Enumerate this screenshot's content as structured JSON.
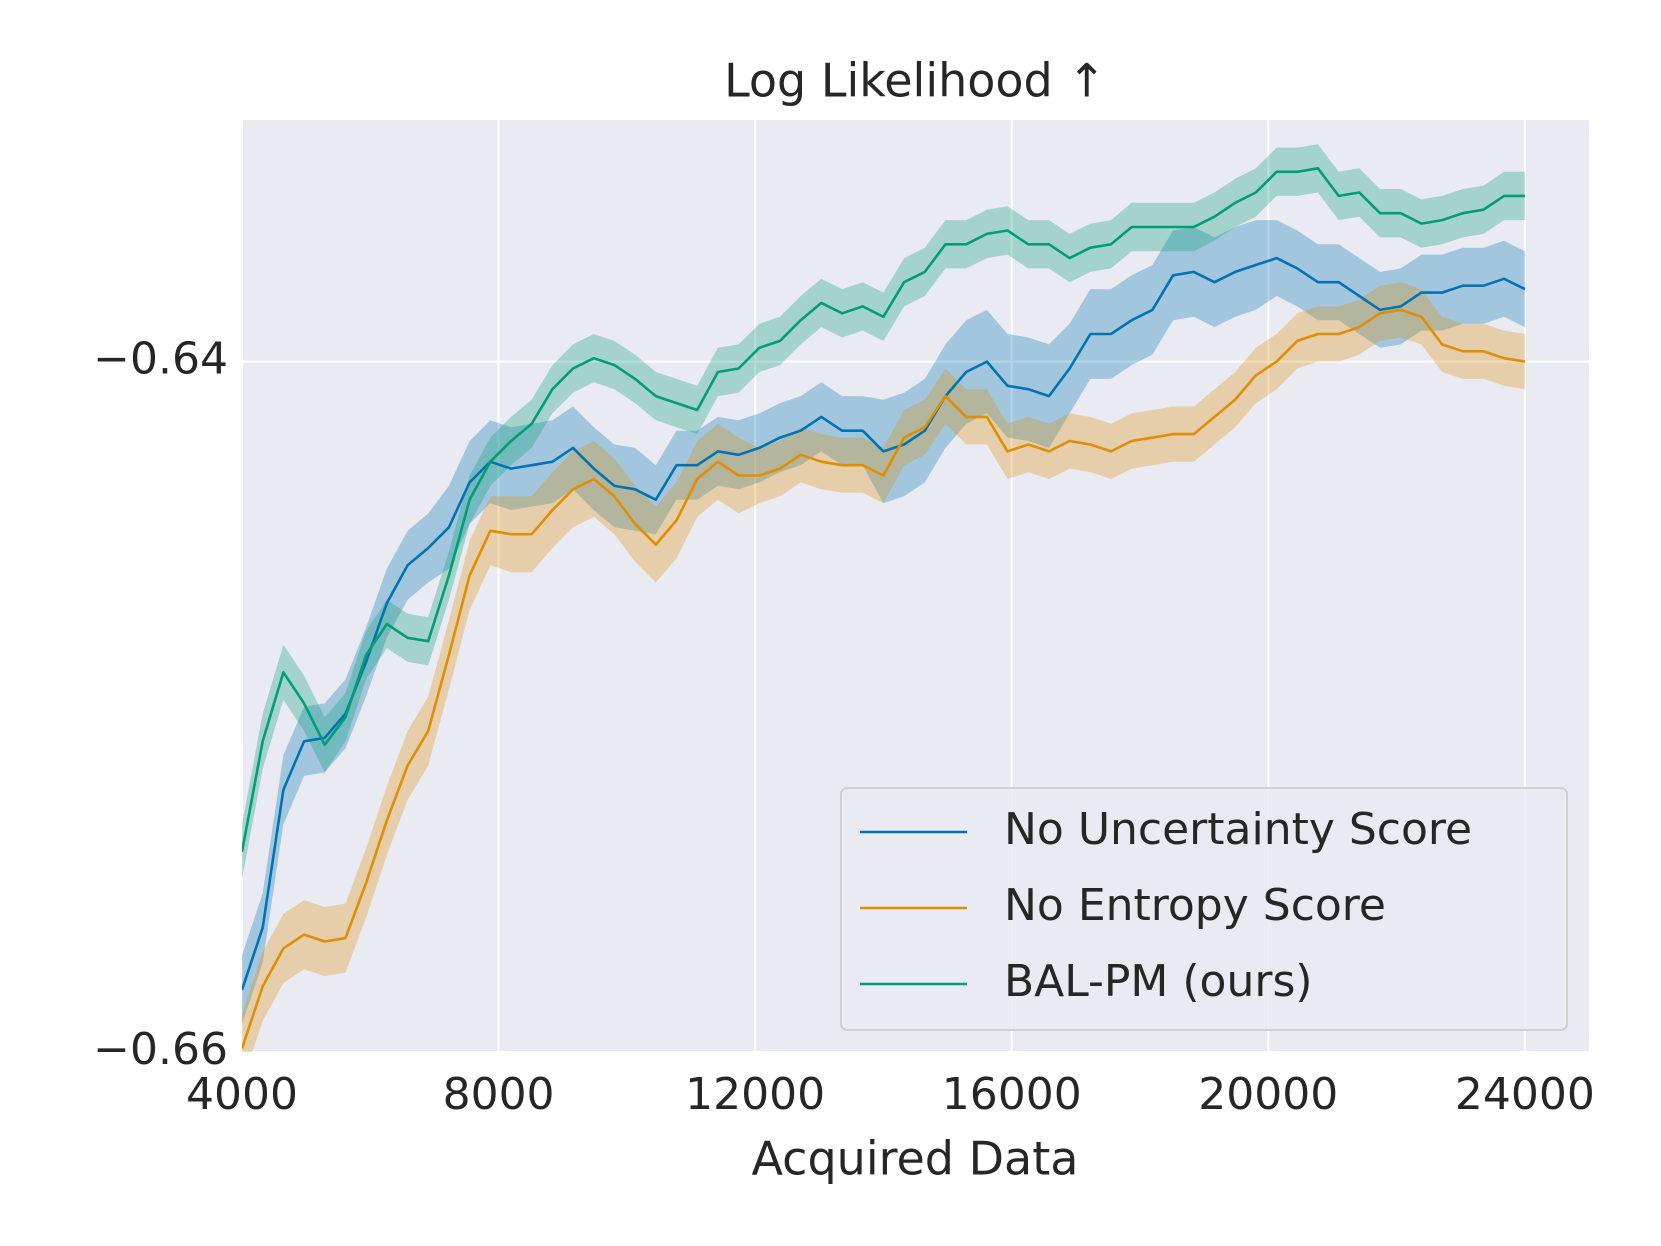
{
  "chart_data": {
    "type": "line",
    "title": "Log Likelihood ↑",
    "xlabel": "Acquired Data",
    "xlim": [
      4000,
      25000
    ],
    "ylim": [
      -0.66,
      -0.633
    ],
    "xticks": [
      4000,
      8000,
      12000,
      16000,
      20000,
      24000
    ],
    "yticks": [
      {
        "value": -0.64,
        "label": "−0.64"
      },
      {
        "value": -0.66,
        "label": "−0.66"
      }
    ],
    "grid": true,
    "legend": "lower right",
    "x": [
      4000,
      4323,
      4645,
      4968,
      5290,
      5613,
      5935,
      6258,
      6581,
      6903,
      7226,
      7548,
      7871,
      8194,
      8516,
      8839,
      9161,
      9484,
      9806,
      10129,
      10452,
      10774,
      11097,
      11419,
      11742,
      12065,
      12387,
      12710,
      13032,
      13355,
      13677,
      14000,
      14323,
      14645,
      14968,
      15290,
      15613,
      15935,
      16258,
      16581,
      16903,
      17226,
      17548,
      17871,
      18194,
      18516,
      18839,
      19161,
      19484,
      19806,
      20129,
      20452,
      20774,
      21097,
      21419,
      21742,
      22065,
      22387,
      22710,
      23032,
      23355,
      23677,
      24000
    ],
    "series": [
      {
        "name": "No Uncertainty Score",
        "color": "#0173b2",
        "values": [
          -0.6582,
          -0.6564,
          -0.6524,
          -0.651,
          -0.6509,
          -0.6502,
          -0.6487,
          -0.647,
          -0.6459,
          -0.6454,
          -0.6448,
          -0.6435,
          -0.6429,
          -0.6431,
          -0.643,
          -0.6429,
          -0.6425,
          -0.6431,
          -0.6436,
          -0.6437,
          -0.644,
          -0.643,
          -0.643,
          -0.6426,
          -0.6427,
          -0.6425,
          -0.6422,
          -0.642,
          -0.6416,
          -0.642,
          -0.642,
          -0.6426,
          -0.6424,
          -0.642,
          -0.641,
          -0.6403,
          -0.64,
          -0.6407,
          -0.6408,
          -0.641,
          -0.6402,
          -0.6392,
          -0.6392,
          -0.6388,
          -0.6385,
          -0.6375,
          -0.6374,
          -0.6377,
          -0.6374,
          -0.6372,
          -0.637,
          -0.6373,
          -0.6377,
          -0.6377,
          -0.6381,
          -0.6385,
          -0.6384,
          -0.638,
          -0.638,
          -0.6378,
          -0.6378,
          -0.6376,
          -0.6379
        ],
        "error": [
          0.001,
          0.001,
          0.001,
          0.001,
          0.001,
          0.001,
          0.001,
          0.001,
          0.001,
          0.001,
          0.0012,
          0.0012,
          0.0012,
          0.0012,
          0.0012,
          0.0012,
          0.0012,
          0.0012,
          0.0012,
          0.0012,
          0.001,
          0.001,
          0.001,
          0.001,
          0.001,
          0.001,
          0.001,
          0.001,
          0.001,
          0.001,
          0.001,
          0.0015,
          0.0015,
          0.0015,
          0.0015,
          0.0015,
          0.0015,
          0.0015,
          0.0015,
          0.0015,
          0.0013,
          0.0013,
          0.0013,
          0.0013,
          0.0013,
          0.0013,
          0.0013,
          0.0013,
          0.0013,
          0.0013,
          0.0011,
          0.0011,
          0.0011,
          0.0011,
          0.0011,
          0.0011,
          0.0011,
          0.0011,
          0.0011,
          0.0011,
          0.0011,
          0.0011,
          0.0011
        ]
      },
      {
        "name": "No Entropy Score",
        "color": "#de8f05",
        "values": [
          -0.6599,
          -0.6581,
          -0.657,
          -0.6566,
          -0.6568,
          -0.6567,
          -0.6551,
          -0.6533,
          -0.6517,
          -0.6507,
          -0.6485,
          -0.6462,
          -0.6449,
          -0.645,
          -0.645,
          -0.6443,
          -0.6437,
          -0.6434,
          -0.6439,
          -0.6447,
          -0.6453,
          -0.6446,
          -0.6434,
          -0.6429,
          -0.6433,
          -0.6433,
          -0.6431,
          -0.6427,
          -0.6429,
          -0.643,
          -0.643,
          -0.6433,
          -0.6422,
          -0.6419,
          -0.641,
          -0.6416,
          -0.6416,
          -0.6426,
          -0.6424,
          -0.6426,
          -0.6423,
          -0.6424,
          -0.6426,
          -0.6423,
          -0.6422,
          -0.6421,
          -0.6421,
          -0.6416,
          -0.6411,
          -0.6404,
          -0.64,
          -0.6394,
          -0.6392,
          -0.6392,
          -0.639,
          -0.6386,
          -0.6385,
          -0.6387,
          -0.6395,
          -0.6397,
          -0.6397,
          -0.6399,
          -0.64
        ],
        "error": [
          0.001,
          0.001,
          0.001,
          0.001,
          0.001,
          0.001,
          0.001,
          0.001,
          0.001,
          0.001,
          0.001,
          0.001,
          0.001,
          0.0011,
          0.0011,
          0.0011,
          0.0011,
          0.0011,
          0.0011,
          0.0011,
          0.0011,
          0.0011,
          0.0011,
          0.0011,
          0.0011,
          0.0008,
          0.0008,
          0.0008,
          0.0008,
          0.0008,
          0.0008,
          0.0008,
          0.0008,
          0.0008,
          0.0008,
          0.0008,
          0.0008,
          0.0008,
          0.0008,
          0.0008,
          0.0008,
          0.0008,
          0.0008,
          0.0008,
          0.0008,
          0.0008,
          0.0008,
          0.0008,
          0.0008,
          0.0008,
          0.0008,
          0.0008,
          0.0008,
          0.0008,
          0.0008,
          0.0008,
          0.0008,
          0.0008,
          0.0008,
          0.0008,
          0.0008,
          0.0008,
          0.0008
        ]
      },
      {
        "name": "BAL-PM (ours)",
        "color": "#029e73",
        "values": [
          -0.6542,
          -0.651,
          -0.649,
          -0.6499,
          -0.6511,
          -0.6503,
          -0.6485,
          -0.6476,
          -0.648,
          -0.6481,
          -0.6462,
          -0.644,
          -0.6429,
          -0.6423,
          -0.6418,
          -0.6408,
          -0.6402,
          -0.6399,
          -0.6401,
          -0.6405,
          -0.641,
          -0.6412,
          -0.6414,
          -0.6403,
          -0.6402,
          -0.6396,
          -0.6394,
          -0.6388,
          -0.6383,
          -0.6386,
          -0.6384,
          -0.6387,
          -0.6377,
          -0.6374,
          -0.6366,
          -0.6366,
          -0.6363,
          -0.6362,
          -0.6366,
          -0.6366,
          -0.637,
          -0.6367,
          -0.6366,
          -0.6361,
          -0.6361,
          -0.6361,
          -0.6361,
          -0.6358,
          -0.6354,
          -0.6351,
          -0.6345,
          -0.6345,
          -0.6344,
          -0.6352,
          -0.6351,
          -0.6357,
          -0.6357,
          -0.636,
          -0.6359,
          -0.6357,
          -0.6356,
          -0.6352,
          -0.6352
        ],
        "error": [
          0.0008,
          0.0008,
          0.0008,
          0.0008,
          0.0008,
          0.0007,
          0.0007,
          0.0007,
          0.0007,
          0.0007,
          0.0007,
          0.0007,
          0.0007,
          0.0007,
          0.0007,
          0.0007,
          0.0007,
          0.0007,
          0.0007,
          0.0007,
          0.0007,
          0.0007,
          0.0007,
          0.0007,
          0.0007,
          0.0007,
          0.0007,
          0.0007,
          0.0007,
          0.0007,
          0.0007,
          0.0007,
          0.0007,
          0.0007,
          0.0007,
          0.0007,
          0.0007,
          0.0007,
          0.0007,
          0.0007,
          0.0007,
          0.0007,
          0.0007,
          0.0007,
          0.0007,
          0.0007,
          0.0007,
          0.0007,
          0.0007,
          0.0007,
          0.0007,
          0.0007,
          0.0007,
          0.0007,
          0.0007,
          0.0007,
          0.0007,
          0.0007,
          0.0007,
          0.0007,
          0.0007,
          0.0007,
          0.0007
        ]
      }
    ]
  }
}
